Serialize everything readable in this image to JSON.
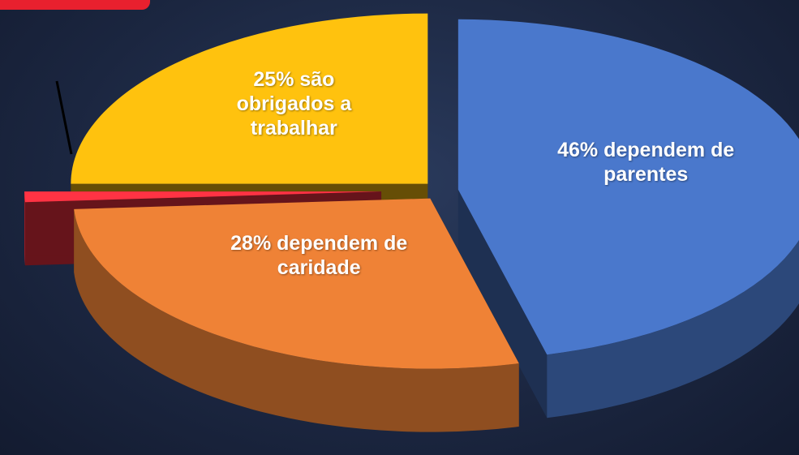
{
  "chart_data": {
    "type": "pie",
    "values": [
      46,
      28,
      1,
      25
    ],
    "value_labels": [
      "46% dependem de parentes",
      "28% dependem de caridade",
      null,
      "25% são obrigados a trabalhar"
    ],
    "colors": [
      "#4a78cc",
      "#ef8236",
      "#ff3344",
      "#ffc20e"
    ]
  }
}
